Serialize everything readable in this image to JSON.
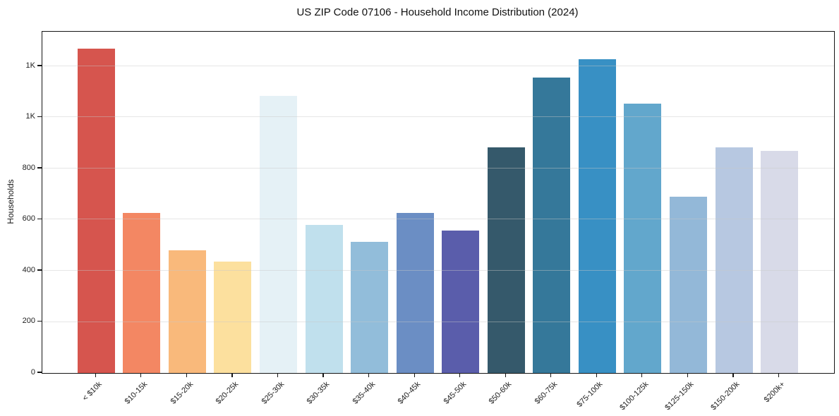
{
  "figure": {
    "background": "#ffffff",
    "spine_color": "#151515",
    "grid_color": "#e8e8e8",
    "text_color": "#222222"
  },
  "chart_data": {
    "type": "bar",
    "title": "US ZIP Code 07106 - Household Income Distribution (2024)",
    "xlabel": "",
    "ylabel": "Households",
    "categories": [
      "< $10k",
      "$10-15k",
      "$15-20k",
      "$20-25k",
      "$25-30k",
      "$30-35k",
      "$35-40k",
      "$40-45k",
      "$45-50k",
      "$50-60k",
      "$60-75k",
      "$75-100k",
      "$100-125k",
      "$125-150k",
      "$150-200k",
      "$200k+"
    ],
    "values": [
      1270,
      625,
      480,
      437,
      1083,
      578,
      512,
      627,
      556,
      882,
      1156,
      1228,
      1053,
      689,
      882,
      868
    ],
    "bar_colors": [
      "#d6554e",
      "#f38763",
      "#f9b97b",
      "#fce09e",
      "#e5f1f6",
      "#c0e0ed",
      "#92bdda",
      "#6b8ec4",
      "#5a5dab",
      "#35596b",
      "#35789a",
      "#3890c4",
      "#62a7cc",
      "#93b8d8",
      "#b7c8e1",
      "#d8dae8"
    ],
    "ylim": [
      0,
      1335
    ],
    "yticks": {
      "values": [
        0,
        200,
        400,
        600,
        800,
        1000,
        1200
      ],
      "labels": [
        "0",
        "200",
        "400",
        "600",
        "800",
        "1K",
        "1K"
      ]
    },
    "grid": "horizontal",
    "legend": "none",
    "x_tick_rotation": 45
  }
}
